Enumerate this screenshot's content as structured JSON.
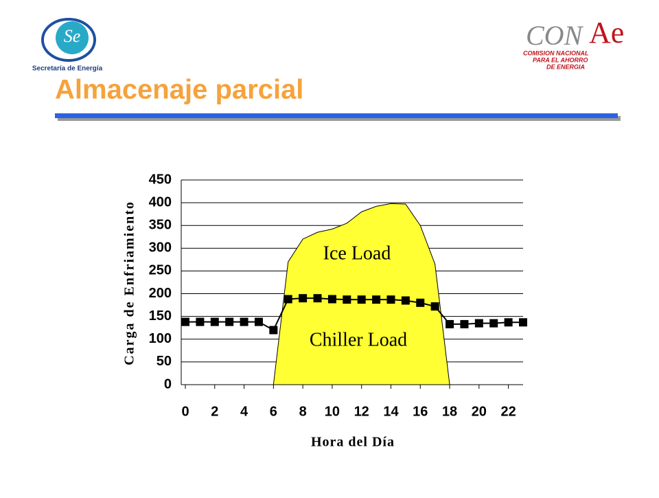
{
  "header": {
    "title": "Almacenaje parcial",
    "left_logo": {
      "initials": "Se",
      "caption": "Secretaría de Energía"
    },
    "right_logo": {
      "mark_a": "CON",
      "mark_b": "Ae",
      "lines": [
        "COMISION NACIONAL",
        "PARA EL AHORRO",
        "DE ENERGIA"
      ]
    }
  },
  "chart_data": {
    "type": "area-line",
    "x_label": "Hora del Día",
    "y_label": "Carga de Enfriamiento",
    "annotations": [
      "Ice Load",
      "Chiller Load"
    ],
    "x": [
      0,
      1,
      2,
      3,
      4,
      5,
      6,
      7,
      8,
      9,
      10,
      11,
      12,
      13,
      14,
      15,
      16,
      17,
      18,
      19,
      20,
      21,
      22,
      23
    ],
    "series": [
      {
        "kind": "area",
        "color": "#ffff33",
        "values": [
          null,
          null,
          null,
          null,
          null,
          null,
          0,
          270,
          320,
          335,
          342,
          355,
          380,
          392,
          398,
          397,
          350,
          265,
          0,
          null,
          null,
          null,
          null,
          null
        ]
      },
      {
        "kind": "line",
        "color": "#000000",
        "values": [
          138,
          138,
          138,
          138,
          138,
          138,
          120,
          188,
          190,
          190,
          188,
          187,
          187,
          187,
          187,
          185,
          180,
          172,
          133,
          133,
          135,
          135,
          137,
          137
        ]
      }
    ],
    "xlim": [
      0,
      23
    ],
    "xticks": [
      0,
      2,
      4,
      6,
      8,
      10,
      12,
      14,
      16,
      18,
      20,
      22
    ],
    "ylim": [
      0,
      450
    ],
    "yticks": [
      0,
      50,
      100,
      150,
      200,
      250,
      300,
      350,
      400,
      450
    ],
    "grid": true
  }
}
